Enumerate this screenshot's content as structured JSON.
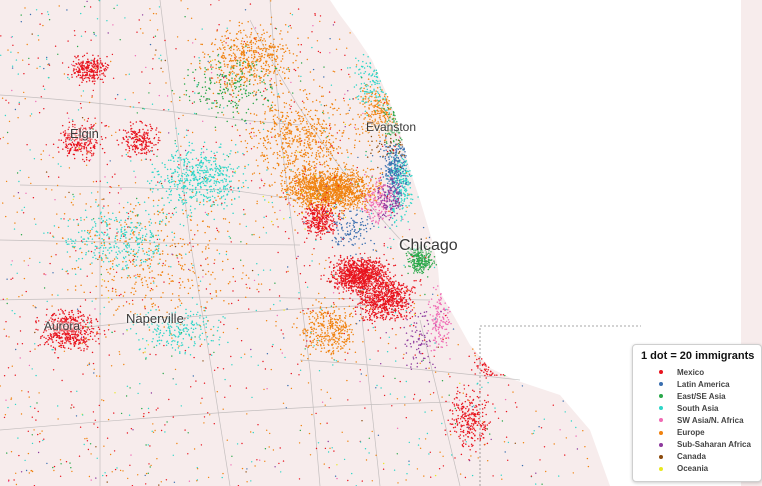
{
  "map": {
    "cities": [
      {
        "id": "elgin",
        "name": "Elgin",
        "size": 13
      },
      {
        "id": "evanston",
        "name": "Evanston",
        "size": 12
      },
      {
        "id": "chicago",
        "name": "Chicago",
        "size": 16
      },
      {
        "id": "aurora",
        "name": "Aurora",
        "size": 12
      },
      {
        "id": "naperville",
        "name": "Naperville",
        "size": 13
      }
    ],
    "colors": {
      "land": "#f7ecec",
      "lake": "#ffffff",
      "road": "#9a9a9a"
    }
  },
  "legend": {
    "title": "1 dot = 20 immigrants",
    "items": [
      {
        "label": "Mexico",
        "color": "#e8141e"
      },
      {
        "label": "Latin America",
        "color": "#3b6fb0"
      },
      {
        "label": "East/SE Asia",
        "color": "#2aa84a"
      },
      {
        "label": "South Asia",
        "color": "#2ed6c8"
      },
      {
        "label": "SW Asia/N. Africa",
        "color": "#f06ab4"
      },
      {
        "label": "Europe",
        "color": "#f0820f"
      },
      {
        "label": "Sub-Saharan Africa",
        "color": "#8e3a9e"
      },
      {
        "label": "Canada",
        "color": "#8b4a0c"
      },
      {
        "label": "Oceania",
        "color": "#e8e820"
      }
    ]
  }
}
